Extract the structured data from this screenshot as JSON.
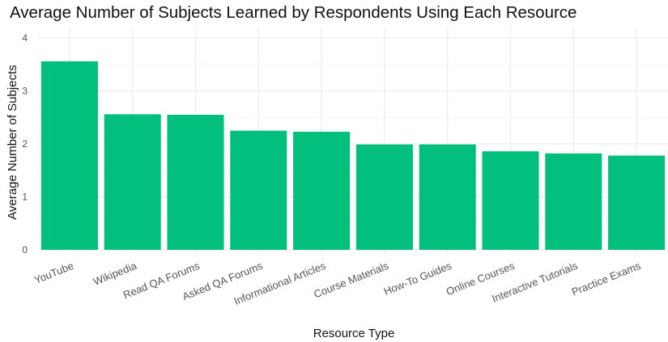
{
  "chart_data": {
    "type": "bar",
    "title": "Average Number of Subjects Learned by Respondents Using Each Resource",
    "xlabel": "Resource Type",
    "ylabel": "Average Number of Subjects",
    "categories": [
      "YouTube",
      "Wikipedia",
      "Read QA Forums",
      "Asked QA Forums",
      "Informational Articles",
      "Course Materials",
      "How-To Guides",
      "Online Courses",
      "Interactive Tutorials",
      "Practice Exams"
    ],
    "values": [
      3.56,
      2.56,
      2.55,
      2.25,
      2.23,
      1.99,
      1.99,
      1.86,
      1.82,
      1.78
    ],
    "yticks": [
      "0",
      "1",
      "2",
      "3",
      "4"
    ],
    "ylim": [
      0,
      4.1
    ],
    "grid": true,
    "colors": {
      "bar": "#03bf7d",
      "grid": "#ebebeb"
    }
  }
}
